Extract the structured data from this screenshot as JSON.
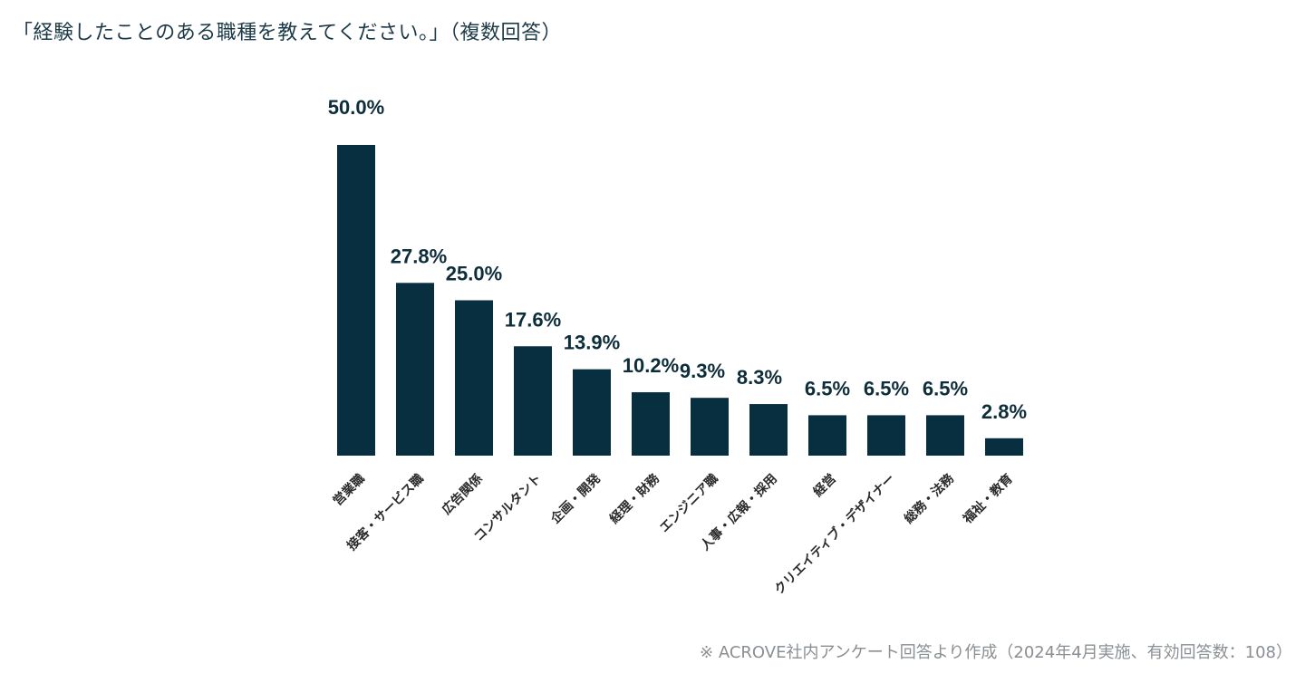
{
  "question": "「経験したことのある職種を教えてください。」（複数回答）",
  "footnote": "※ ACROVE社内アンケート回答より作成（2024年4月実施、有効回答数：108）",
  "colors": {
    "bar": "#072f3f",
    "label": "#0d2d3a"
  },
  "chart_data": {
    "type": "bar",
    "title": "「経験したことのある職種を教えてください。」（複数回答）",
    "categories": [
      "営業職",
      "接客・サービス職",
      "広告関係",
      "コンサルタント",
      "企画・開発",
      "経理・財務",
      "エンジニア職",
      "人事・広報・採用",
      "経営",
      "クリエイティブ・デザイナー",
      "総務・法務",
      "福祉・教育"
    ],
    "values": [
      50.0,
      27.8,
      25.0,
      17.6,
      13.9,
      10.2,
      9.3,
      8.3,
      6.5,
      6.5,
      6.5,
      2.8
    ],
    "labels": [
      "50.0%",
      "27.8%",
      "25.0%",
      "17.6%",
      "13.9%",
      "10.2%",
      "9.3%",
      "8.3%",
      "6.5%",
      "6.5%",
      "6.5%",
      "2.8%"
    ],
    "unit": "%",
    "ylim": [
      0,
      50
    ],
    "xlabel": "",
    "ylabel": "",
    "grid": false,
    "legend": "none"
  }
}
